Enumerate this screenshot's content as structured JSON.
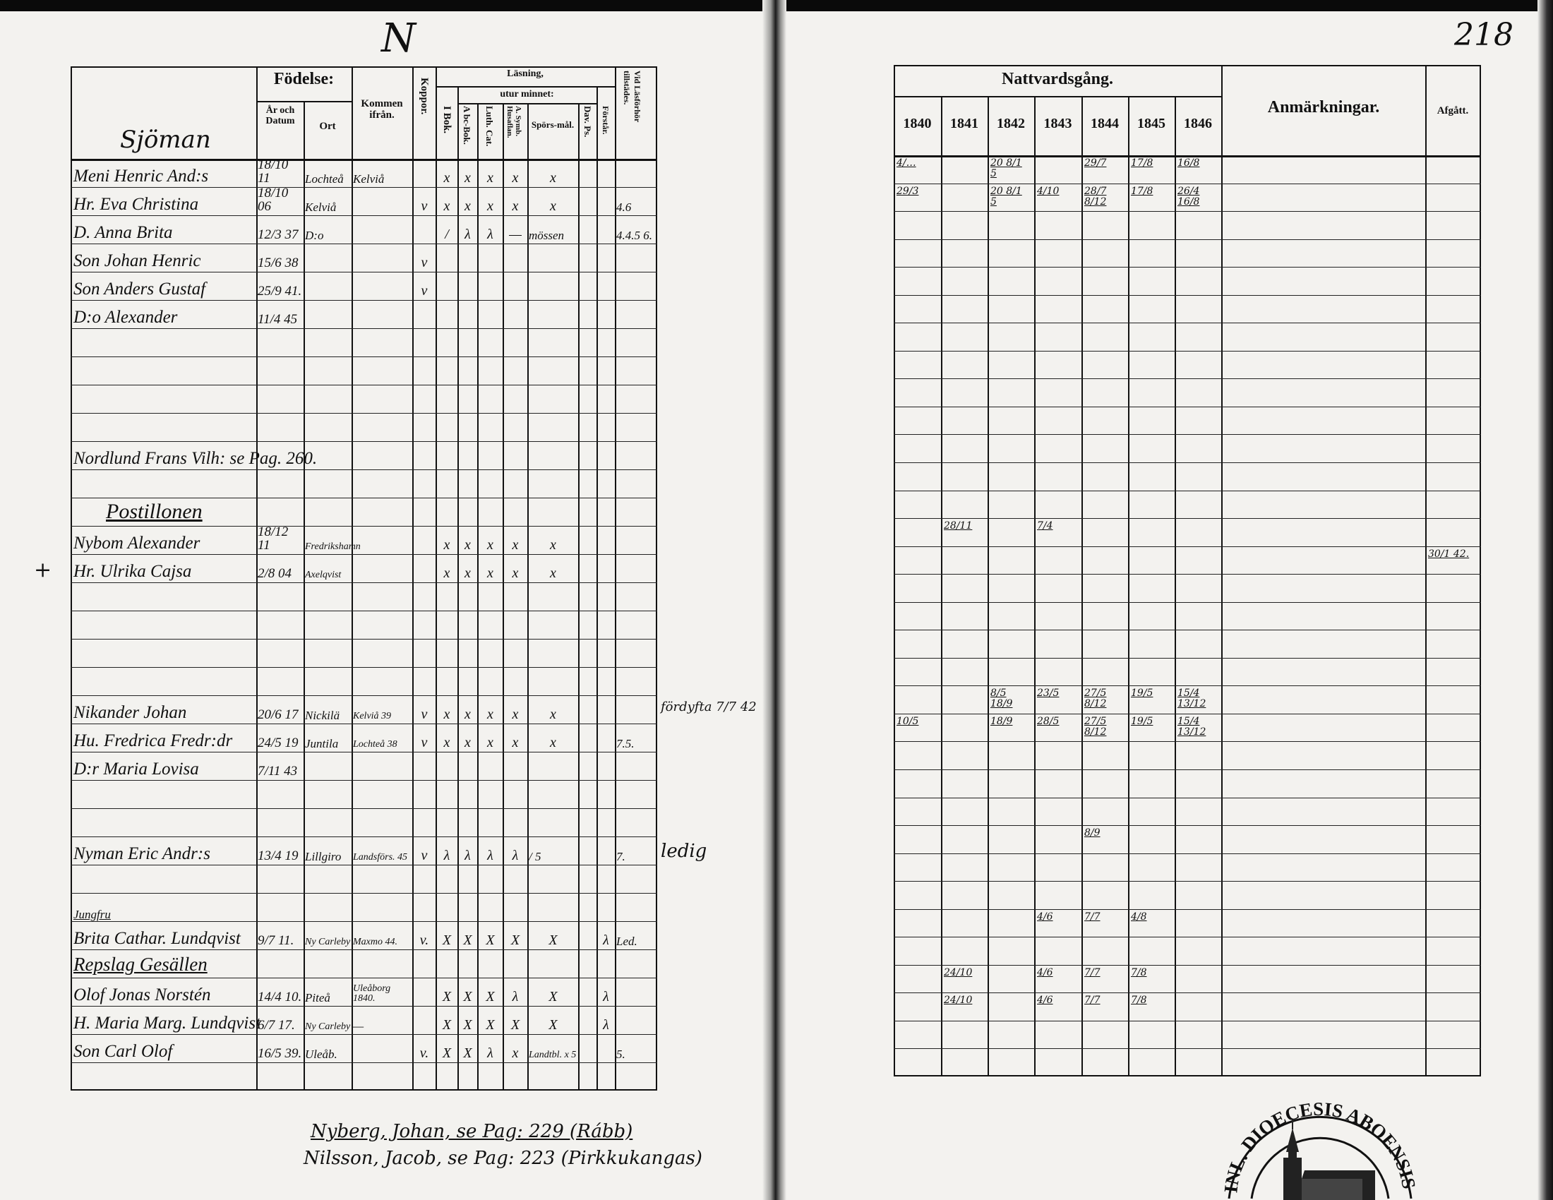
{
  "left_page": {
    "top_mark": "N",
    "section_heading": "Sjöman",
    "headers": {
      "fodelse": "Födelse:",
      "ar_och_datum": "År och Datum",
      "ort": "Ort",
      "kommen_ifran": "Kommen ifrån.",
      "koppor": "Koppor.",
      "lasning": "Läsning,",
      "i_bok": "I Bok.",
      "utur_minnet": "utur minnet:",
      "abc_bok": "A bc-Bok.",
      "luth_cat": "Luth. Cat.",
      "symb": "A. Symb. Husaflan.",
      "sporsmal": "Spörs-mål.",
      "dav_ps": "Dav. Ps.",
      "forstar": "Förstår.",
      "via_lasforhor": "Vid Läsförhör tillstädes."
    },
    "rows": [
      {
        "row": 0,
        "name": "Meni Henric And:s",
        "date": "18/10 11",
        "ort": "Lochteå",
        "kommen": "Kelviå",
        "koppor": "",
        "ibok": "x",
        "abc": "x",
        "luth": "x",
        "symb": "x",
        "spors": "x",
        "dav": "",
        "forst": "",
        "via": ""
      },
      {
        "row": 1,
        "name": "Hr. Eva Christina",
        "date": "18/10 06",
        "ort": "Kelviå",
        "kommen": "",
        "koppor": "v",
        "ibok": "x",
        "abc": "x",
        "luth": "x",
        "symb": "x",
        "spors": "x",
        "dav": "",
        "forst": "",
        "via": "4.6"
      },
      {
        "row": 2,
        "name": "D. Anna Brita",
        "date": "12/3 37",
        "ort": "D:o",
        "kommen": "",
        "koppor": "",
        "ibok": "/",
        "abc": "λ",
        "luth": "λ",
        "symb": "—",
        "spors": "mössen",
        "dav": "",
        "forst": "",
        "via": "4.4.5 6."
      },
      {
        "row": 3,
        "name": "Son Johan Henric",
        "date": "15/6 38",
        "ort": "",
        "kommen": "",
        "koppor": "v",
        "ibok": "",
        "abc": "",
        "luth": "",
        "symb": "",
        "spors": "",
        "dav": "",
        "forst": "",
        "via": ""
      },
      {
        "row": 4,
        "name": "Son Anders Gustaf",
        "date": "25/9 41.",
        "ort": "",
        "kommen": "",
        "koppor": "v",
        "ibok": "",
        "abc": "",
        "luth": "",
        "symb": "",
        "spors": "",
        "dav": "",
        "forst": "",
        "via": ""
      },
      {
        "row": 5,
        "name": "D:o Alexander",
        "date": "11/4 45",
        "ort": "",
        "kommen": "",
        "koppor": "",
        "ibok": "",
        "abc": "",
        "luth": "",
        "symb": "",
        "spors": "",
        "dav": "",
        "forst": "",
        "via": ""
      },
      {
        "row": 10,
        "name": "Nordlund Frans Vilh: se Pag. 260.",
        "date": "",
        "ort": "",
        "kommen": "",
        "koppor": "",
        "ibok": "",
        "abc": "",
        "luth": "",
        "symb": "",
        "spors": "",
        "dav": "",
        "forst": "",
        "via": ""
      },
      {
        "row": 12,
        "name": "Postillonen",
        "heading": true,
        "date": "",
        "ort": "",
        "kommen": "",
        "koppor": "",
        "ibok": "",
        "abc": "",
        "luth": "",
        "symb": "",
        "spors": "",
        "dav": "",
        "forst": "",
        "via": ""
      },
      {
        "row": 13,
        "name": "Nybom Alexander",
        "date": "18/12 11",
        "ort": "Fredrikshamn",
        "kommen": "",
        "koppor": "",
        "ibok": "x",
        "abc": "x",
        "luth": "x",
        "symb": "x",
        "spors": "x",
        "dav": "",
        "forst": "",
        "via": ""
      },
      {
        "row": 14,
        "name": "Hr. Ulrika Cajsa",
        "date": "2/8 04",
        "ort": "Axelqvist",
        "kommen": "",
        "koppor": "",
        "ibok": "x",
        "abc": "x",
        "luth": "x",
        "symb": "x",
        "spors": "x",
        "dav": "",
        "forst": "",
        "via": ""
      },
      {
        "row": 19,
        "name": "Nikander Johan",
        "date": "20/6 17",
        "ort": "Nickilä",
        "kommen": "Kelviå 39",
        "koppor": "v",
        "ibok": "x",
        "abc": "x",
        "luth": "x",
        "symb": "x",
        "spors": "x",
        "dav": "",
        "forst": "",
        "via": ""
      },
      {
        "row": 20,
        "name": "Hu. Fredrica Fredr:dr",
        "date": "24/5 19",
        "ort": "Juntila",
        "kommen": "Lochteå 38",
        "koppor": "v",
        "ibok": "x",
        "abc": "x",
        "luth": "x",
        "symb": "x",
        "spors": "x",
        "dav": "",
        "forst": "",
        "via": "7.5."
      },
      {
        "row": 21,
        "name": "D:r Maria Lovisa",
        "date": "7/11 43",
        "ort": "",
        "kommen": "",
        "koppor": "",
        "ibok": "",
        "abc": "",
        "luth": "",
        "symb": "",
        "spors": "",
        "dav": "",
        "forst": "",
        "via": ""
      },
      {
        "row": 24,
        "name": "Nyman Eric Andr:s",
        "date": "13/4 19",
        "ort": "Lillgiro",
        "kommen": "Landsförs. 45",
        "koppor": "v",
        "ibok": "λ",
        "abc": "λ",
        "luth": "λ",
        "symb": "λ",
        "spors": "/ 5",
        "dav": "",
        "forst": "",
        "via": "7."
      },
      {
        "row": 27,
        "name": "Brita Cathar. Lundqvist",
        "prefix": "Jungfru",
        "date": "9/7 11.",
        "ort": "Ny Carleby",
        "kommen": "Maxmo 44.",
        "koppor": "v.",
        "ibok": "X",
        "abc": "X",
        "luth": "X",
        "symb": "X",
        "spors": "X",
        "dav": "",
        "forst": "λ",
        "via": "Led."
      },
      {
        "row": 28,
        "name": "Repslag Gesällen",
        "heading": true,
        "date": "",
        "ort": "",
        "kommen": "",
        "koppor": "",
        "ibok": "",
        "abc": "",
        "luth": "",
        "symb": "",
        "spors": "",
        "dav": "",
        "forst": "",
        "via": ""
      },
      {
        "row": 29,
        "name": "Olof Jonas Norstén",
        "date": "14/4 10.",
        "ort": "Piteå",
        "kommen": "Uleåborg 1840.",
        "koppor": "",
        "ibok": "X",
        "abc": "X",
        "luth": "X",
        "symb": "λ",
        "spors": "X",
        "dav": "",
        "forst": "λ",
        "via": ""
      },
      {
        "row": 30,
        "name": "H. Maria Marg. Lundqvist",
        "date": "6/7 17.",
        "ort": "Ny Carleby",
        "kommen": "—",
        "koppor": "",
        "ibok": "X",
        "abc": "X",
        "luth": "X",
        "symb": "X",
        "spors": "X",
        "dav": "",
        "forst": "λ",
        "via": ""
      },
      {
        "row": 31,
        "name": "Son Carl Olof",
        "date": "16/5 39.",
        "ort": "Uleåb.",
        "kommen": "",
        "koppor": "v.",
        "ibok": "X",
        "abc": "X",
        "luth": "λ",
        "symb": "x",
        "spors": "Landtbl. x 5",
        "dav": "",
        "forst": "",
        "via": "5."
      }
    ],
    "margin_notes": [
      {
        "row": 19,
        "text": "fördyfta 7/7 42"
      },
      {
        "row": 24,
        "text": "ledig"
      }
    ],
    "cross_mark": "+",
    "footer_notes": [
      "Nyberg, Johan, se Pag: 229 (Rább)",
      "Nilsson, Jacob, se Pag: 223 (Pirkkukangas)"
    ]
  },
  "right_page": {
    "page_number": "218",
    "headers": {
      "nattvardsgang": "Nattvardsgång.",
      "years": [
        "1840",
        "1841",
        "1842",
        "1843",
        "1844",
        "1845",
        "1846"
      ],
      "anmarkningar": "Anmärkningar.",
      "afgatt": "Afgått."
    },
    "entries": [
      {
        "row": 0,
        "col": 0,
        "text": "4/…"
      },
      {
        "row": 0,
        "col": 2,
        "text": "20 8/1 5"
      },
      {
        "row": 0,
        "col": 4,
        "text": "29/7"
      },
      {
        "row": 0,
        "col": 5,
        "text": "17/8"
      },
      {
        "row": 0,
        "col": 6,
        "text": "16/8"
      },
      {
        "row": 1,
        "col": 0,
        "text": "29/3"
      },
      {
        "row": 1,
        "col": 2,
        "text": "20 8/1 5"
      },
      {
        "row": 1,
        "col": 3,
        "text": "4/10"
      },
      {
        "row": 1,
        "col": 4,
        "text": "28/7 8/12"
      },
      {
        "row": 1,
        "col": 5,
        "text": "17/8"
      },
      {
        "row": 1,
        "col": 6,
        "text": "26/4 16/8"
      },
      {
        "row": 13,
        "col": 1,
        "text": "28/11"
      },
      {
        "row": 13,
        "col": 3,
        "text": "7/4"
      },
      {
        "row": 14,
        "col": 8,
        "text": "30/1 42."
      },
      {
        "row": 19,
        "col": 2,
        "text": "8/5 18/9"
      },
      {
        "row": 19,
        "col": 3,
        "text": "23/5"
      },
      {
        "row": 19,
        "col": 4,
        "text": "27/5 8/12"
      },
      {
        "row": 19,
        "col": 5,
        "text": "19/5"
      },
      {
        "row": 19,
        "col": 6,
        "text": "15/4 13/12"
      },
      {
        "row": 20,
        "col": 0,
        "text": "10/5"
      },
      {
        "row": 20,
        "col": 2,
        "text": "18/9"
      },
      {
        "row": 20,
        "col": 3,
        "text": "28/5"
      },
      {
        "row": 20,
        "col": 4,
        "text": "27/5 8/12"
      },
      {
        "row": 20,
        "col": 5,
        "text": "19/5"
      },
      {
        "row": 20,
        "col": 6,
        "text": "15/4 13/12"
      },
      {
        "row": 24,
        "col": 4,
        "text": "8/9"
      },
      {
        "row": 27,
        "col": 3,
        "text": "4/6"
      },
      {
        "row": 27,
        "col": 4,
        "text": "7/7"
      },
      {
        "row": 27,
        "col": 5,
        "text": "4/8"
      },
      {
        "row": 29,
        "col": 1,
        "text": "24/10"
      },
      {
        "row": 29,
        "col": 3,
        "text": "4/6"
      },
      {
        "row": 29,
        "col": 4,
        "text": "7/7"
      },
      {
        "row": 29,
        "col": 5,
        "text": "7/8"
      },
      {
        "row": 30,
        "col": 1,
        "text": "24/10"
      },
      {
        "row": 30,
        "col": 3,
        "text": "4/6"
      },
      {
        "row": 30,
        "col": 4,
        "text": "7/7"
      },
      {
        "row": 30,
        "col": 5,
        "text": "7/8"
      }
    ],
    "stamp_text": "INL. DIOECESIS ABOENSIS MA"
  }
}
